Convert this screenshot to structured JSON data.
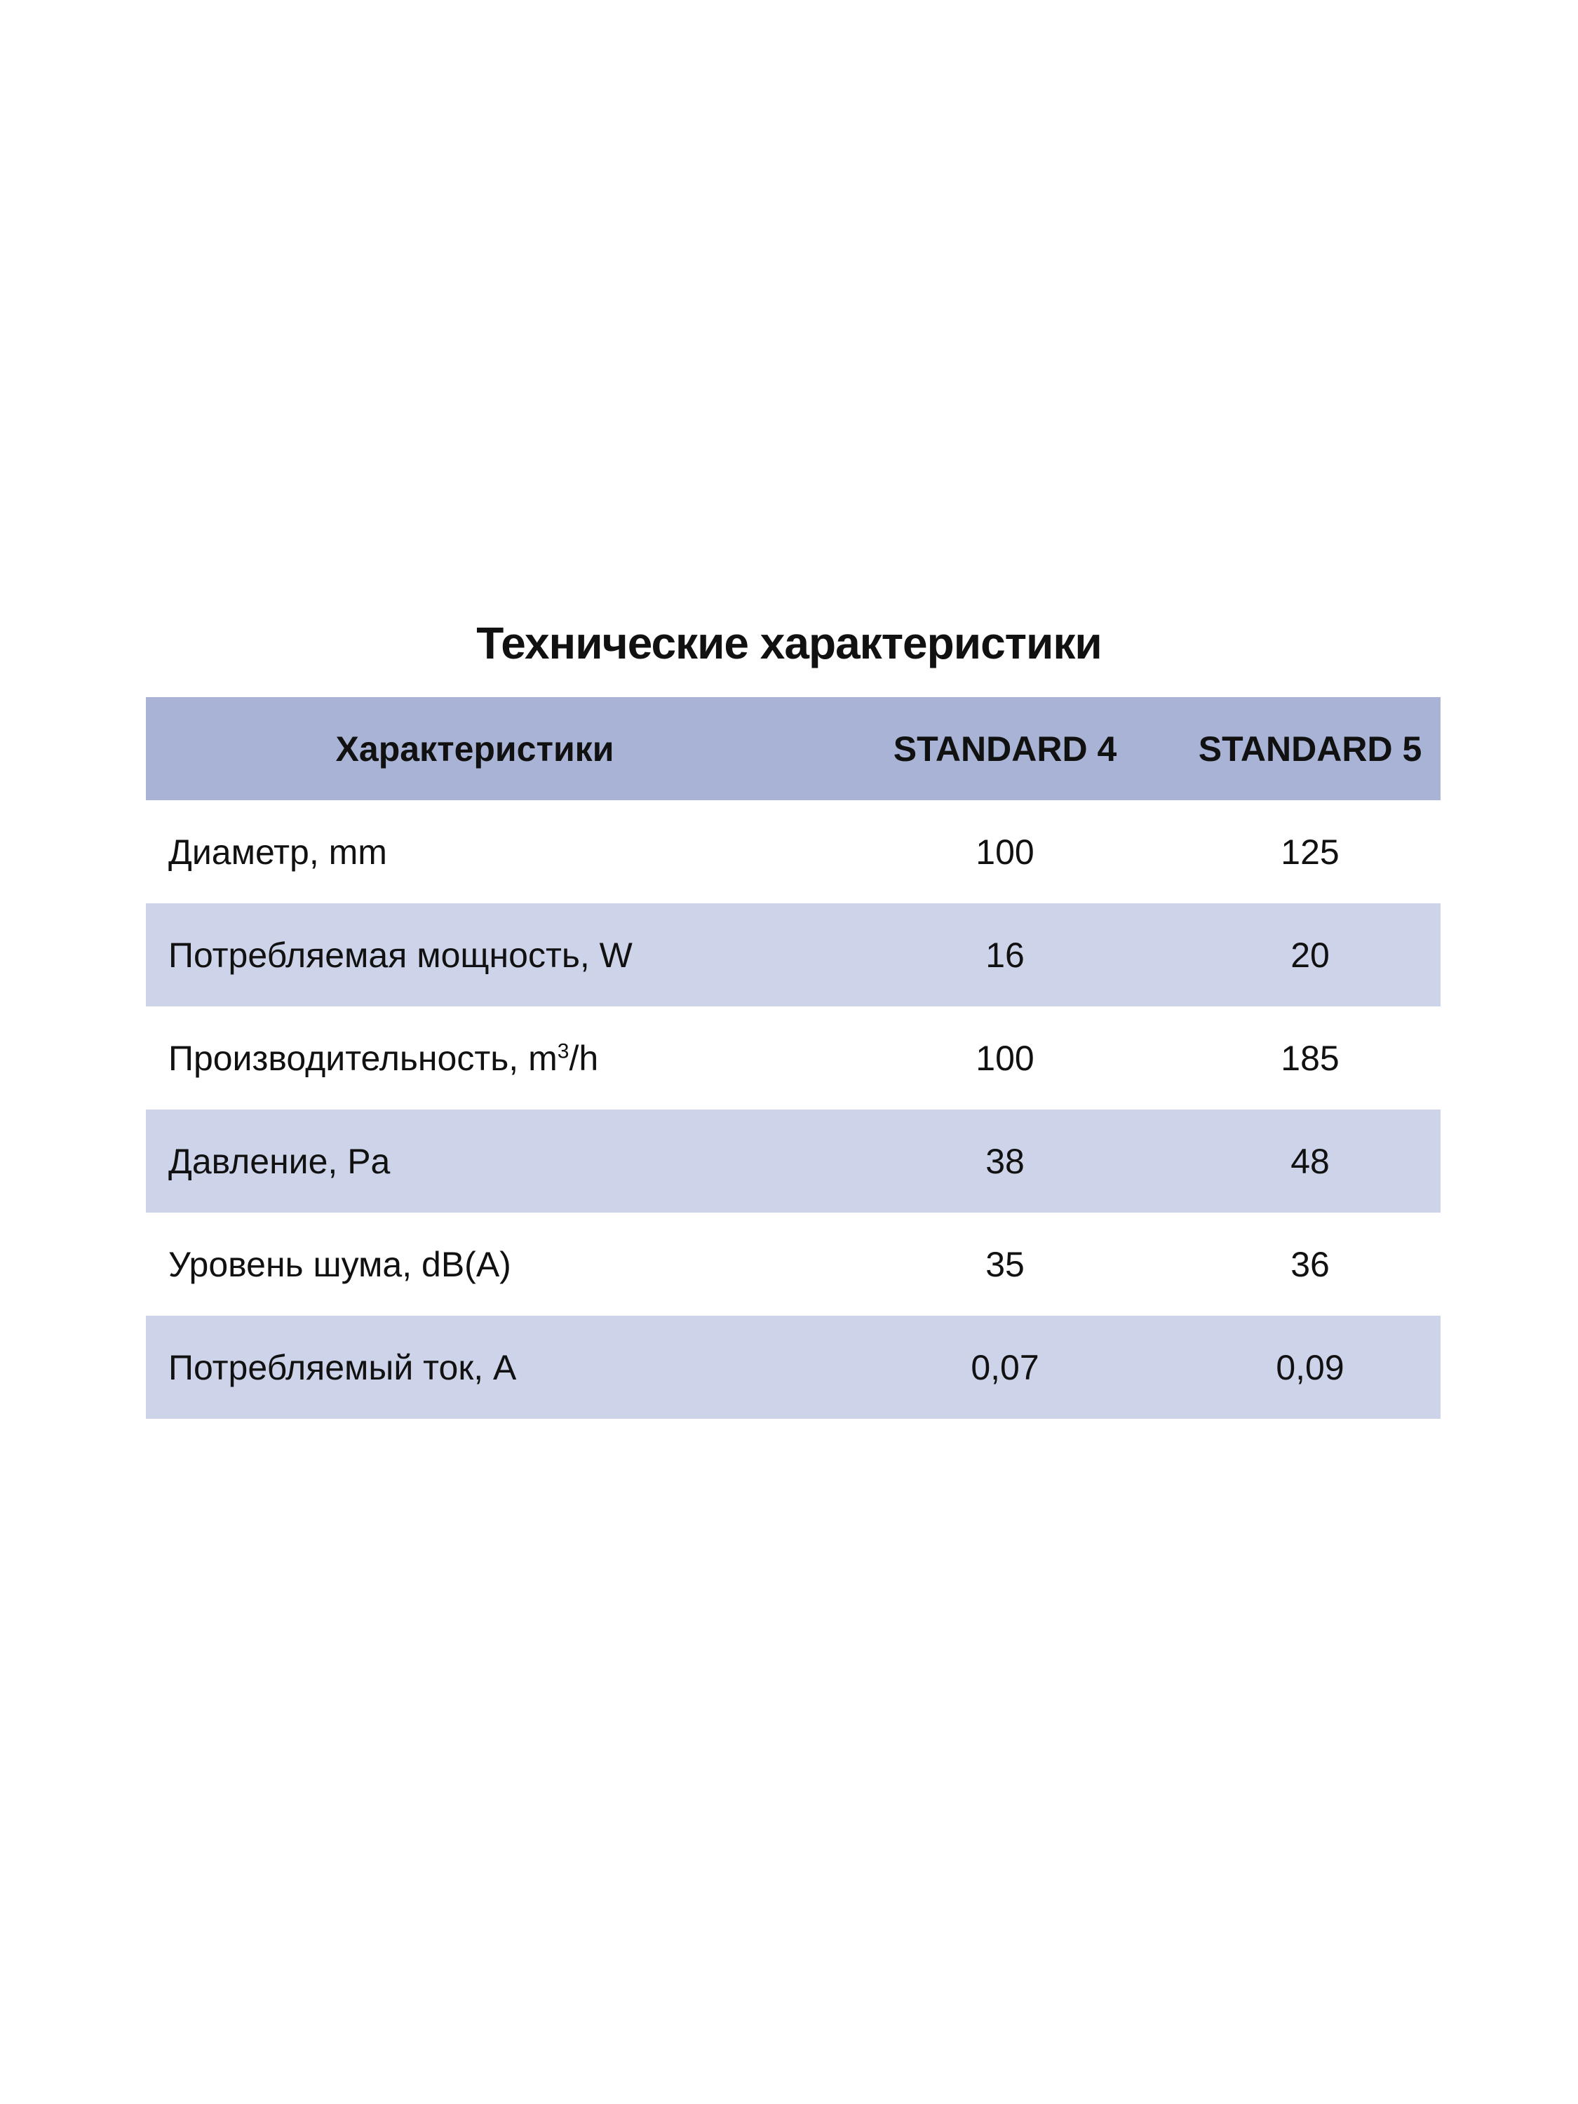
{
  "title": "Технические характеристики",
  "colors": {
    "header_bg": "#a9b3d5",
    "stripe_bg": "#cdd3e8"
  },
  "table": {
    "headers": [
      "Характеристики",
      "STANDARD 4",
      "STANDARD 5"
    ],
    "rows": [
      {
        "label": "Диаметр, mm",
        "v1": "100",
        "v2": "125"
      },
      {
        "label": "Потребляемая мощность, W",
        "v1": "16",
        "v2": "20"
      },
      {
        "label": "Производительность, m",
        "sup": "3",
        "label_suffix": "/h",
        "v1": "100",
        "v2": "185"
      },
      {
        "label": "Давление, Pa",
        "v1": "38",
        "v2": "48"
      },
      {
        "label": "Уровень шума, dB(A)",
        "v1": "35",
        "v2": "36"
      },
      {
        "label": "Потребляемый ток, A",
        "v1": "0,07",
        "v2": "0,09"
      }
    ]
  }
}
